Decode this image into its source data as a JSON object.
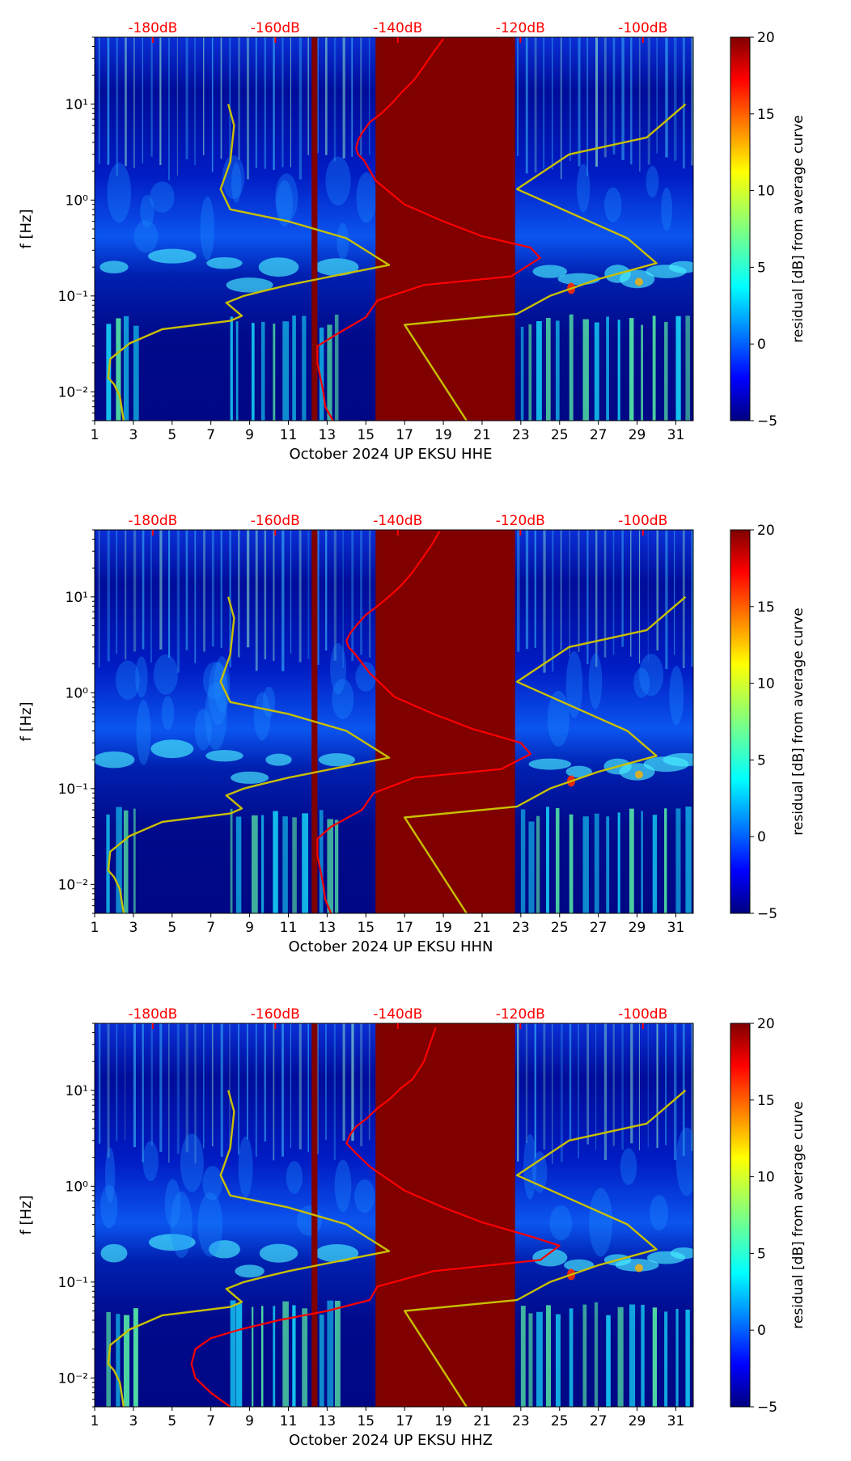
{
  "figure_title": "",
  "colorbar": {
    "label": "residual [dB] from average curve",
    "ticks": [
      "−5",
      "0",
      "5",
      "10",
      "15",
      "20"
    ],
    "tick_values": [
      -5,
      0,
      5,
      10,
      15,
      20
    ],
    "range": [
      -5,
      20
    ],
    "colormap": "jet"
  },
  "colors": {
    "overlay_red": "#ff0000",
    "overlay_yellow": "#c8c000",
    "saturated": "#800000",
    "background_low": "#000080"
  },
  "chart_data": [
    {
      "type": "heatmap",
      "title": "",
      "xlabel": "October 2024 UP EKSU  HHE",
      "ylabel": "f [Hz]",
      "x_ticks": [
        "1",
        "3",
        "5",
        "7",
        "9",
        "11",
        "13",
        "15",
        "17",
        "19",
        "21",
        "23",
        "25",
        "27",
        "29",
        "31"
      ],
      "x_tick_values": [
        1,
        3,
        5,
        7,
        9,
        11,
        13,
        15,
        17,
        19,
        21,
        23,
        25,
        27,
        29,
        31
      ],
      "xlim": [
        1,
        31.9
      ],
      "y_scale": "log",
      "y_ticks": [
        "10⁻²",
        "10⁻¹",
        "10⁰",
        "10¹"
      ],
      "y_tick_values": [
        0.01,
        0.1,
        1,
        10
      ],
      "ylim": [
        0.005,
        50
      ],
      "top_axis_ticks": [
        "-180dB",
        "-160dB",
        "-140dB",
        "-120dB",
        "-100dB"
      ],
      "top_axis_values": [
        -180,
        -160,
        -140,
        -120,
        -100
      ],
      "saturated_bands": [
        [
          12.2,
          12.5
        ],
        [
          15.5,
          22.7
        ]
      ],
      "series": [
        {
          "name": "yellow_curve",
          "color": "#c8c000",
          "x": [
            2.5,
            2.3,
            2.0,
            1.7,
            1.8,
            2.8,
            4.5,
            8.0,
            8.6,
            7.8,
            8.7,
            9.5,
            11.0,
            14.5,
            16.2,
            14.0,
            11.0,
            8.0,
            7.5,
            8.0,
            8.2,
            7.9
          ],
          "y": [
            0.005,
            0.009,
            0.012,
            0.014,
            0.022,
            0.032,
            0.045,
            0.055,
            0.062,
            0.085,
            0.1,
            0.11,
            0.13,
            0.18,
            0.21,
            0.4,
            0.6,
            0.8,
            1.3,
            2.5,
            6.0,
            10.0
          ]
        },
        {
          "name": "yellow_curve_right",
          "color": "#c8c000",
          "x": [
            20.2,
            17.0,
            22.8,
            24.5,
            27.0,
            30.0,
            28.5,
            22.8,
            25.5,
            29.5,
            31.5
          ],
          "y": [
            0.005,
            0.05,
            0.065,
            0.1,
            0.15,
            0.22,
            0.4,
            1.3,
            3.0,
            4.5,
            10.0
          ]
        },
        {
          "name": "red_curve",
          "color": "#ff0000",
          "x": [
            13.3,
            12.9,
            12.8,
            12.5,
            12.5,
            13.5,
            15.0,
            15.6,
            18.0,
            22.5,
            24.0,
            23.5,
            21.0,
            19.0,
            17.0,
            15.5,
            14.9,
            14.6,
            14.5,
            14.6,
            14.8,
            15.2,
            15.8,
            16.4,
            16.8,
            17.5,
            18.0,
            18.5,
            19.0
          ],
          "y": [
            0.005,
            0.007,
            0.01,
            0.02,
            0.03,
            0.04,
            0.06,
            0.09,
            0.13,
            0.16,
            0.25,
            0.32,
            0.42,
            0.6,
            0.9,
            1.6,
            2.6,
            3.0,
            3.5,
            4.2,
            5.0,
            6.5,
            8.0,
            10.5,
            13.0,
            18.0,
            25.0,
            35.0,
            48.0
          ]
        }
      ]
    },
    {
      "type": "heatmap",
      "title": "",
      "xlabel": "October 2024 UP EKSU  HHN",
      "ylabel": "f [Hz]",
      "x_ticks": [
        "1",
        "3",
        "5",
        "7",
        "9",
        "11",
        "13",
        "15",
        "17",
        "19",
        "21",
        "23",
        "25",
        "27",
        "29",
        "31"
      ],
      "x_tick_values": [
        1,
        3,
        5,
        7,
        9,
        11,
        13,
        15,
        17,
        19,
        21,
        23,
        25,
        27,
        29,
        31
      ],
      "xlim": [
        1,
        31.9
      ],
      "y_scale": "log",
      "y_ticks": [
        "10⁻²",
        "10⁻¹",
        "10⁰",
        "10¹"
      ],
      "y_tick_values": [
        0.01,
        0.1,
        1,
        10
      ],
      "ylim": [
        0.005,
        50
      ],
      "top_axis_ticks": [
        "-180dB",
        "-160dB",
        "-140dB",
        "-120dB",
        "-100dB"
      ],
      "top_axis_values": [
        -180,
        -160,
        -140,
        -120,
        -100
      ],
      "saturated_bands": [
        [
          12.2,
          12.5
        ],
        [
          15.5,
          22.7
        ]
      ],
      "series": [
        {
          "name": "yellow_curve",
          "color": "#c8c000",
          "x": [
            2.5,
            2.3,
            2.0,
            1.7,
            1.8,
            2.8,
            4.5,
            8.0,
            8.6,
            7.8,
            8.7,
            9.5,
            11.0,
            14.5,
            16.2,
            14.0,
            11.0,
            8.0,
            7.5,
            8.0,
            8.2,
            7.9
          ],
          "y": [
            0.005,
            0.009,
            0.012,
            0.014,
            0.022,
            0.032,
            0.045,
            0.055,
            0.062,
            0.085,
            0.1,
            0.11,
            0.13,
            0.18,
            0.21,
            0.4,
            0.6,
            0.8,
            1.3,
            2.5,
            6.0,
            10.0
          ]
        },
        {
          "name": "yellow_curve_right",
          "color": "#c8c000",
          "x": [
            20.2,
            17.0,
            22.8,
            24.5,
            27.0,
            30.0,
            28.5,
            22.8,
            25.5,
            29.5,
            31.5
          ],
          "y": [
            0.005,
            0.05,
            0.065,
            0.1,
            0.15,
            0.22,
            0.4,
            1.3,
            3.0,
            4.5,
            10.0
          ]
        },
        {
          "name": "red_curve",
          "color": "#ff0000",
          "x": [
            13.2,
            12.9,
            12.8,
            12.5,
            12.5,
            13.2,
            14.8,
            15.4,
            17.5,
            22.0,
            23.5,
            23.0,
            20.5,
            18.5,
            16.5,
            15.2,
            14.4,
            14.1,
            14.0,
            14.2,
            14.5,
            15.0,
            15.6,
            16.3,
            16.8,
            17.4,
            17.9,
            18.4,
            18.8
          ],
          "y": [
            0.005,
            0.007,
            0.01,
            0.02,
            0.03,
            0.04,
            0.06,
            0.09,
            0.13,
            0.16,
            0.23,
            0.3,
            0.42,
            0.6,
            0.9,
            1.6,
            2.6,
            3.0,
            3.5,
            4.2,
            5.0,
            6.5,
            8.0,
            10.5,
            13.0,
            18.0,
            25.0,
            35.0,
            48.0
          ]
        }
      ]
    },
    {
      "type": "heatmap",
      "title": "",
      "xlabel": "October 2024 UP EKSU  HHZ",
      "ylabel": "f [Hz]",
      "x_ticks": [
        "1",
        "3",
        "5",
        "7",
        "9",
        "11",
        "13",
        "15",
        "17",
        "19",
        "21",
        "23",
        "25",
        "27",
        "29",
        "31"
      ],
      "x_tick_values": [
        1,
        3,
        5,
        7,
        9,
        11,
        13,
        15,
        17,
        19,
        21,
        23,
        25,
        27,
        29,
        31
      ],
      "xlim": [
        1,
        31.9
      ],
      "y_scale": "log",
      "y_ticks": [
        "10⁻²",
        "10⁻¹",
        "10⁰",
        "10¹"
      ],
      "y_tick_values": [
        0.01,
        0.1,
        1,
        10
      ],
      "ylim": [
        0.005,
        50
      ],
      "top_axis_ticks": [
        "-180dB",
        "-160dB",
        "-140dB",
        "-120dB",
        "-100dB"
      ],
      "top_axis_values": [
        -180,
        -160,
        -140,
        -120,
        -100
      ],
      "saturated_bands": [
        [
          12.2,
          12.5
        ],
        [
          15.5,
          22.7
        ]
      ],
      "series": [
        {
          "name": "yellow_curve",
          "color": "#c8c000",
          "x": [
            2.5,
            2.3,
            2.0,
            1.7,
            1.8,
            2.8,
            4.5,
            8.0,
            8.6,
            7.8,
            8.7,
            9.5,
            11.0,
            14.5,
            16.2,
            14.0,
            11.0,
            8.0,
            7.5,
            8.0,
            8.2,
            7.9
          ],
          "y": [
            0.005,
            0.009,
            0.012,
            0.014,
            0.022,
            0.032,
            0.045,
            0.055,
            0.062,
            0.085,
            0.1,
            0.11,
            0.13,
            0.18,
            0.21,
            0.4,
            0.6,
            0.8,
            1.3,
            2.5,
            6.0,
            10.0
          ]
        },
        {
          "name": "yellow_curve_right",
          "color": "#c8c000",
          "x": [
            20.2,
            17.0,
            22.8,
            24.5,
            27.0,
            30.0,
            28.5,
            22.8,
            25.5,
            29.5,
            31.5
          ],
          "y": [
            0.005,
            0.05,
            0.065,
            0.1,
            0.15,
            0.22,
            0.4,
            1.3,
            3.0,
            4.5,
            10.0
          ]
        },
        {
          "name": "red_curve",
          "color": "#ff0000",
          "x": [
            8.0,
            7.0,
            6.2,
            6.0,
            6.2,
            7.0,
            8.5,
            10.5,
            13.0,
            15.2,
            15.6,
            18.5,
            24.0,
            25.0,
            23.5,
            21.0,
            19.0,
            17.0,
            15.2,
            14.4,
            14.0,
            14.2,
            14.5,
            15.0,
            15.6,
            16.2,
            16.8,
            17.4,
            18.0,
            18.6
          ],
          "y": [
            0.005,
            0.007,
            0.01,
            0.014,
            0.02,
            0.026,
            0.032,
            0.04,
            0.05,
            0.065,
            0.09,
            0.13,
            0.17,
            0.24,
            0.3,
            0.42,
            0.6,
            0.9,
            1.6,
            2.3,
            2.8,
            3.5,
            4.2,
            5.0,
            6.5,
            8.0,
            10.5,
            13.0,
            20.0,
            45.0
          ]
        }
      ]
    }
  ]
}
